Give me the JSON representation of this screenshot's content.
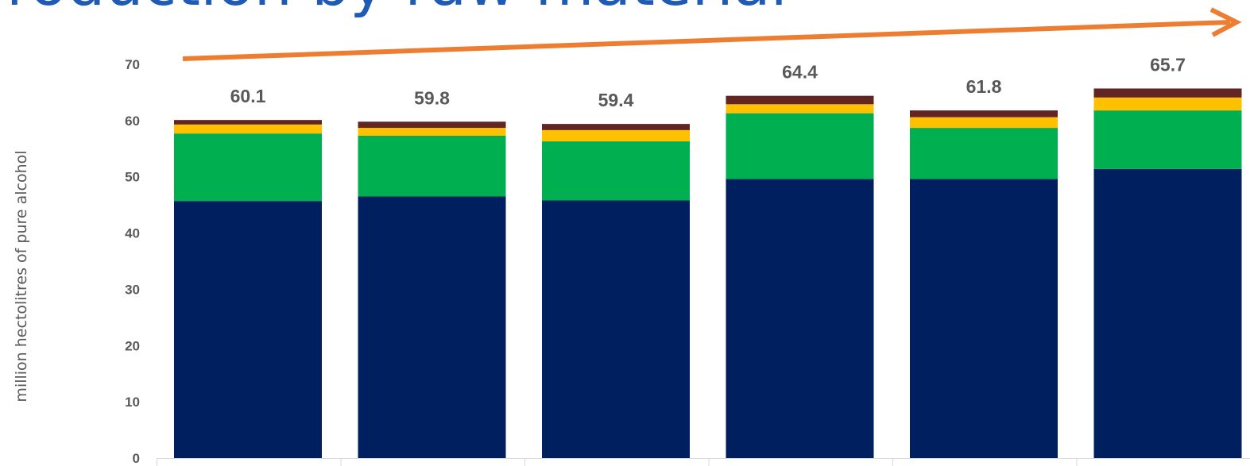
{
  "chart_data": {
    "type": "bar",
    "stacked": true,
    "title": "roduction by raw material",
    "ylabel": "million hectolitres of pure alcohol",
    "ylim": [
      0,
      70
    ],
    "yticks": [
      0,
      10,
      20,
      30,
      40,
      50,
      60,
      70
    ],
    "categories": [
      "",
      "",
      "",
      "",
      "",
      ""
    ],
    "totals": [
      "60.1",
      "59.8",
      "59.4",
      "64.4",
      "61.8",
      "65.7"
    ],
    "series": [
      {
        "color": "#001f5f",
        "values": [
          45.7,
          46.5,
          45.8,
          49.6,
          49.6,
          51.4
        ]
      },
      {
        "color": "#00b050",
        "values": [
          12.0,
          10.8,
          10.5,
          11.7,
          9.1,
          10.4
        ]
      },
      {
        "color": "#ffc000",
        "values": [
          1.6,
          1.4,
          2.0,
          1.6,
          1.9,
          2.3
        ]
      },
      {
        "color": "#632523",
        "values": [
          0.8,
          1.1,
          1.1,
          1.5,
          1.2,
          1.6
        ]
      }
    ],
    "grid": false,
    "trend_arrow_color": "#ed7d31"
  }
}
